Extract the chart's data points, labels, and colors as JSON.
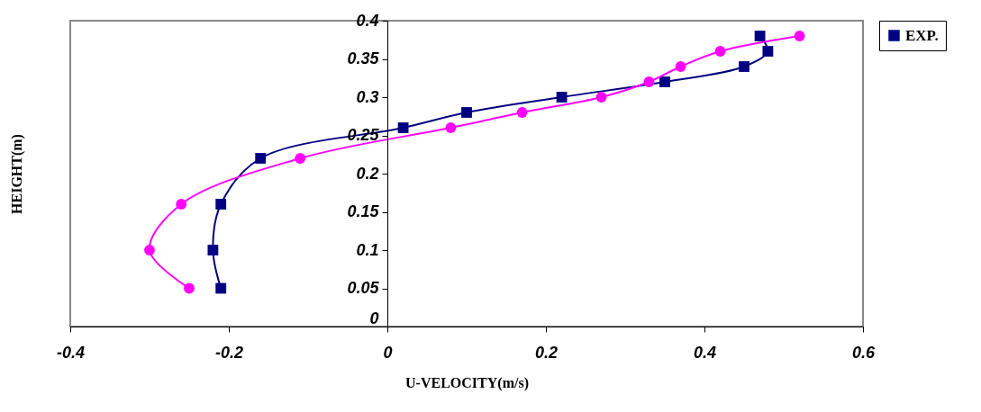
{
  "chart_data": {
    "type": "line",
    "xlabel": "U-VELOCITY(m/s)",
    "ylabel": "HEIGHT(m)",
    "xlim": [
      -0.4,
      0.6
    ],
    "xticks": [
      -0.4,
      -0.2,
      0,
      0.2,
      0.4,
      0.6
    ],
    "ylim": [
      0,
      0.4
    ],
    "yticks": [
      0,
      0.05,
      0.1,
      0.15,
      0.2,
      0.25,
      0.3,
      0.35,
      0.4
    ],
    "grid": false,
    "legend": "right",
    "series": [
      {
        "name": "EXP.",
        "color": "#000080",
        "marker": "square",
        "x": [
          -0.21,
          -0.22,
          -0.21,
          -0.16,
          0.02,
          0.1,
          0.22,
          0.35,
          0.45,
          0.48,
          0.47
        ],
        "values": [
          0.05,
          0.1,
          0.16,
          0.22,
          0.26,
          0.28,
          0.3,
          0.32,
          0.34,
          0.36,
          0.38
        ]
      },
      {
        "color": "#ff00ff",
        "marker": "circle",
        "x": [
          -0.25,
          -0.3,
          -0.26,
          -0.11,
          0.08,
          0.17,
          0.27,
          0.33,
          0.37,
          0.42,
          0.52
        ],
        "values": [
          0.05,
          0.1,
          0.16,
          0.22,
          0.26,
          0.28,
          0.3,
          0.32,
          0.34,
          0.36,
          0.38
        ]
      }
    ]
  }
}
